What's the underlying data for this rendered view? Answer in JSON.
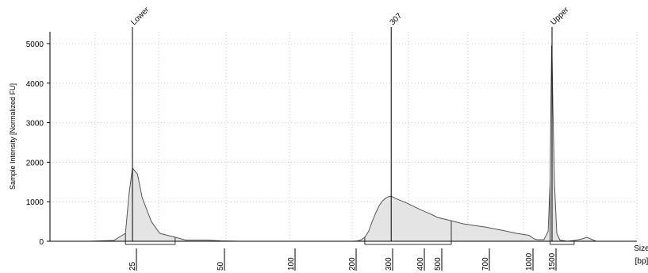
{
  "chart_data": {
    "type": "area",
    "title": "",
    "ylabel": "Sample Intensity [Normalized FU]",
    "xlabel": "Size",
    "xlabel_unit": "[bp]",
    "ylim": [
      0,
      5300
    ],
    "yticks": [
      "0",
      "1000",
      "2000",
      "3000",
      "4000",
      "5000"
    ],
    "xticks": [
      "25",
      "50",
      "100",
      "200",
      "300",
      "400",
      "500",
      "700",
      "1000",
      "1500"
    ],
    "grid": "dotted",
    "peaks": [
      {
        "label": "Lower",
        "size": 25,
        "height": 1850
      },
      {
        "label": "307",
        "size": 307,
        "height": 1140
      },
      {
        "label": "Upper",
        "size": 1500,
        "height": 4950
      }
    ],
    "regions": [
      {
        "from": 23,
        "to": 35
      },
      {
        "from": 230,
        "to": 550
      },
      {
        "from": 1450,
        "to": 1800
      }
    ],
    "x": [
      15,
      20,
      23,
      24,
      25,
      26,
      27,
      29,
      31,
      35,
      38,
      45,
      50,
      60,
      100,
      150,
      200,
      210,
      220,
      230,
      240,
      250,
      260,
      270,
      280,
      290,
      300,
      307,
      320,
      350,
      400,
      450,
      500,
      550,
      600,
      700,
      800,
      900,
      1000,
      1050,
      1100,
      1150,
      1200,
      1300,
      1400,
      1450,
      1470,
      1490,
      1500,
      1510,
      1530,
      1560,
      1600,
      1700,
      1800,
      1900,
      2000,
      2100,
      2200,
      2300,
      2400,
      2500
    ],
    "y": [
      0,
      20,
      200,
      1200,
      1850,
      1700,
      1100,
      500,
      200,
      100,
      30,
      30,
      10,
      0,
      0,
      0,
      0,
      5,
      30,
      100,
      250,
      500,
      720,
      900,
      1020,
      1090,
      1130,
      1140,
      1080,
      980,
      800,
      700,
      600,
      520,
      440,
      360,
      280,
      200,
      150,
      100,
      60,
      40,
      40,
      40,
      250,
      1500,
      3500,
      4950,
      4700,
      3500,
      1500,
      200,
      30,
      0,
      20,
      50,
      100,
      0,
      0,
      0,
      0,
      0
    ]
  }
}
